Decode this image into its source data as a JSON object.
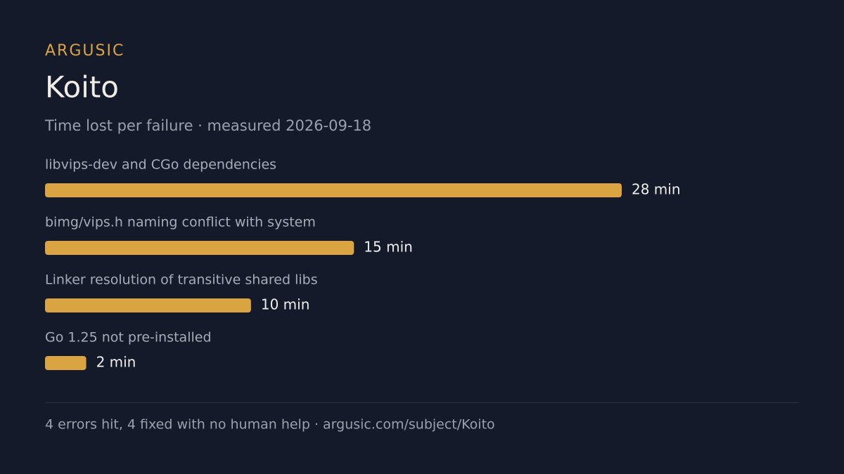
{
  "header": {
    "brand": "ARGUSIC"
  },
  "chart_data": {
    "type": "bar",
    "orientation": "horizontal",
    "title": "Koito",
    "subtitle": "Time lost per failure · measured 2026-09-18",
    "categories": [
      "libvips-dev and CGo dependencies",
      "bimg/vips.h naming conflict with system",
      "Linker resolution of transitive shared libs",
      "Go 1.25 not pre-installed"
    ],
    "values": [
      28,
      15,
      10,
      2
    ],
    "value_labels": [
      "28 min",
      "15 min",
      "10 min",
      "2 min"
    ],
    "color": "#dba442"
  },
  "footer": "4 errors hit, 4 fixed with no human help · argusic.com/subject/Koito"
}
